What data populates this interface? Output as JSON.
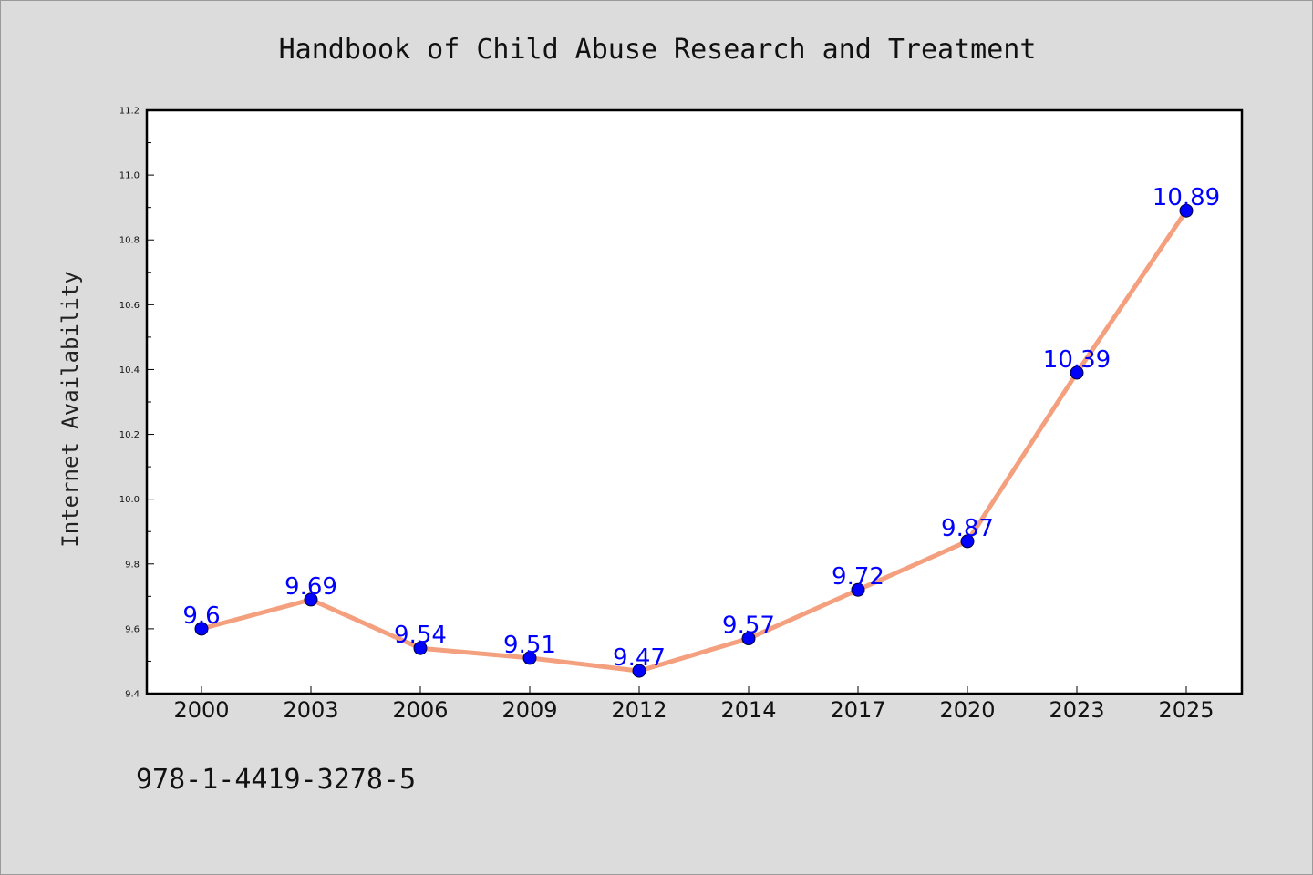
{
  "colors": {
    "line": "#f4a07f",
    "marker": "#0000ff",
    "label": "#0000ff",
    "plot_bg": "#ffffff",
    "page_bg": "#dcdcdc"
  },
  "footer": {
    "isbn": "978-1-4419-3278-5"
  },
  "chart_data": {
    "type": "line",
    "title": "Handbook of Child Abuse Research and Treatment",
    "xlabel": "",
    "ylabel": "Internet Availability",
    "x": [
      "2000",
      "2003",
      "2006",
      "2009",
      "2012",
      "2014",
      "2017",
      "2020",
      "2023",
      "2025"
    ],
    "series": [
      {
        "values": [
          9.6,
          9.69,
          9.54,
          9.51,
          9.47,
          9.57,
          9.72,
          9.87,
          10.39,
          10.89
        ],
        "labels": [
          "9.6",
          "9.69",
          "9.54",
          "9.51",
          "9.47",
          "9.57",
          "9.72",
          "9.87",
          "10.39",
          "10.89"
        ]
      }
    ],
    "ylim": [
      9.4,
      11.2
    ],
    "yticks": [
      "9.4",
      "9.6",
      "9.8",
      "10.0",
      "10.2",
      "10.4",
      "10.6",
      "10.8",
      "11.0",
      "11.2"
    ],
    "grid": false,
    "legend": "none",
    "data_labels": true
  }
}
